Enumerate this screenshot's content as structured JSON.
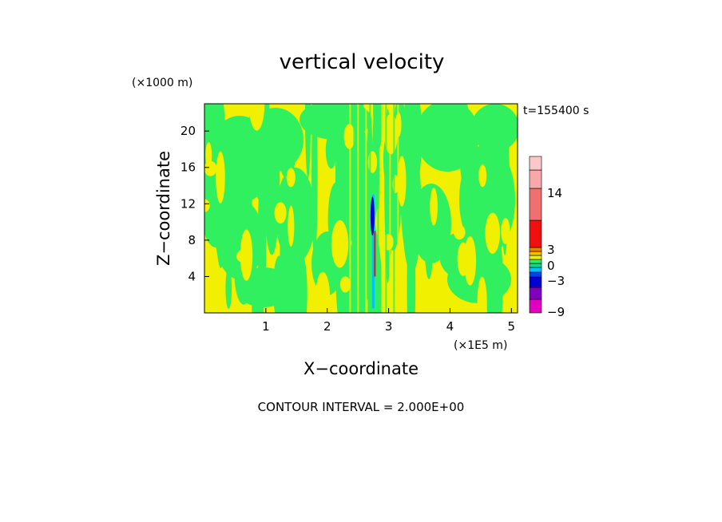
{
  "chart_data": {
    "type": "heatmap",
    "title": "vertical velocity",
    "time_label": "t=155400 s",
    "xlabel": "X−coordinate",
    "ylabel": "Z−coordinate",
    "x_unit": "(×1E5 m)",
    "y_unit": "(×1000 m)",
    "xlim": [
      0,
      5.1
    ],
    "ylim": [
      0,
      23
    ],
    "x_ticks": [
      1,
      2,
      3,
      4,
      5
    ],
    "y_ticks": [
      4,
      8,
      12,
      16,
      20
    ],
    "contour_interval_text": "CONTOUR INTERVAL = 2.000E+00",
    "colorbar": {
      "levels": [
        -9,
        -7,
        -5,
        -3,
        -1,
        0,
        1,
        2,
        3,
        4,
        8,
        14,
        18,
        21
      ],
      "labeled_values": [
        14,
        3,
        0,
        -3,
        -9
      ],
      "colors": [
        "#e000c0",
        "#8000c0",
        "#0000d0",
        "#0040ff",
        "#00c0ff",
        "#00e090",
        "#30f060",
        "#f0f000",
        "#f0c000",
        "#f08000",
        "#f01010",
        "#f07070",
        "#f8a8a8",
        "#fac8c8"
      ]
    },
    "background_color": "#f0f000",
    "band_color": "#30f060",
    "plume": {
      "x": 2.75,
      "z_bottom": 0.5,
      "z_top": 13,
      "core_z_bottom": 8.5,
      "core_z_top": 12.8
    }
  }
}
